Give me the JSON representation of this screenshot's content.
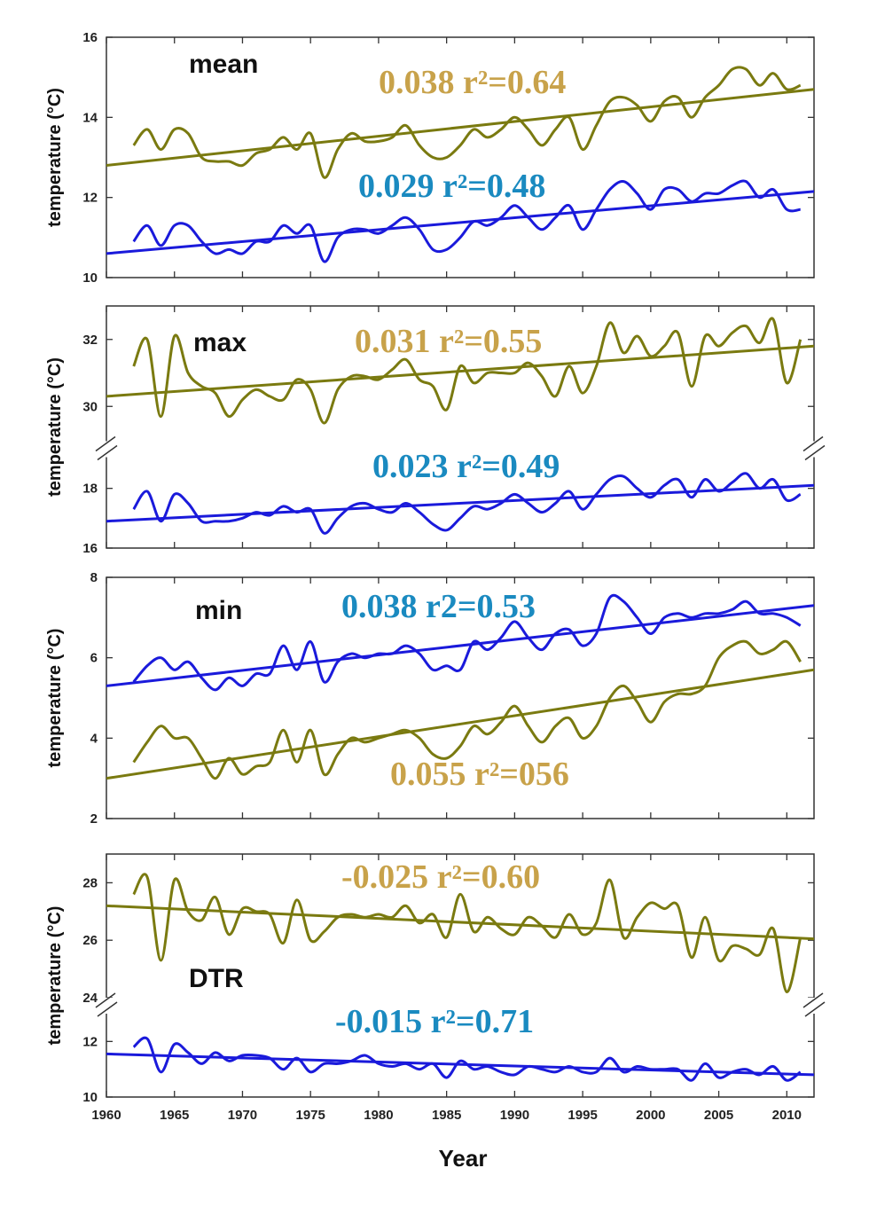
{
  "colors": {
    "olive": "#7a7a10",
    "blue": "#1a1adb",
    "olive_text": "#c8a24a",
    "blue_text": "#1a8ac0"
  },
  "x_axis": {
    "label": "Year",
    "ticks": [
      "1960",
      "1965",
      "1970",
      "1975",
      "1980",
      "1985",
      "1990",
      "1995",
      "2000",
      "2005",
      "2010"
    ]
  },
  "chart_data": [
    {
      "type": "line",
      "panel": "mean",
      "title": "mean",
      "ylabel": "temperature (°C)",
      "xlim": [
        1960,
        2012
      ],
      "ylim": [
        10,
        16
      ],
      "yticks": [
        "10",
        "12",
        "14",
        "16"
      ],
      "x": [
        1962,
        1963,
        1964,
        1965,
        1966,
        1967,
        1968,
        1969,
        1970,
        1971,
        1972,
        1973,
        1974,
        1975,
        1976,
        1977,
        1978,
        1979,
        1980,
        1981,
        1982,
        1983,
        1984,
        1985,
        1986,
        1987,
        1988,
        1989,
        1990,
        1991,
        1992,
        1993,
        1994,
        1995,
        1996,
        1997,
        1998,
        1999,
        2000,
        2001,
        2002,
        2003,
        2004,
        2005,
        2006,
        2007,
        2008,
        2009,
        2010,
        2011
      ],
      "series": [
        {
          "color": "olive",
          "values": [
            13.3,
            13.7,
            13.2,
            13.7,
            13.6,
            13.0,
            12.9,
            12.9,
            12.8,
            13.1,
            13.2,
            13.5,
            13.2,
            13.6,
            12.5,
            13.2,
            13.6,
            13.4,
            13.4,
            13.5,
            13.8,
            13.3,
            13.0,
            13.0,
            13.3,
            13.7,
            13.5,
            13.7,
            14.0,
            13.7,
            13.3,
            13.7,
            14.0,
            13.2,
            13.8,
            14.4,
            14.5,
            14.3,
            13.9,
            14.4,
            14.5,
            14.0,
            14.5,
            14.8,
            15.2,
            15.2,
            14.8,
            15.1,
            14.7,
            14.8
          ],
          "trend": [
            12.8,
            14.7
          ],
          "slope": "0.038",
          "r2": "r²=0.64"
        },
        {
          "color": "blue",
          "values": [
            10.9,
            11.3,
            10.8,
            11.3,
            11.3,
            10.9,
            10.6,
            10.7,
            10.6,
            10.9,
            10.9,
            11.3,
            11.1,
            11.3,
            10.4,
            11.0,
            11.2,
            11.2,
            11.1,
            11.3,
            11.5,
            11.2,
            10.7,
            10.7,
            11.0,
            11.4,
            11.3,
            11.5,
            11.8,
            11.5,
            11.2,
            11.5,
            11.8,
            11.2,
            11.7,
            12.2,
            12.4,
            12.1,
            11.7,
            12.2,
            12.2,
            11.9,
            12.1,
            12.1,
            12.3,
            12.4,
            12.0,
            12.2,
            11.7,
            11.7
          ],
          "trend": [
            10.6,
            12.15
          ],
          "slope": "0.029",
          "r2": "r²=0.48"
        }
      ]
    },
    {
      "type": "line",
      "panel": "max",
      "title": "max",
      "ylabel": "temperature (°C)",
      "xlim": [
        1960,
        2012
      ],
      "broken_axis": true,
      "ylim_upper": [
        29,
        33
      ],
      "yticks_upper": [
        "30",
        "32"
      ],
      "ylim_lower": [
        16,
        19
      ],
      "yticks_lower": [
        "16",
        "18"
      ],
      "x": [
        1962,
        1963,
        1964,
        1965,
        1966,
        1967,
        1968,
        1969,
        1970,
        1971,
        1972,
        1973,
        1974,
        1975,
        1976,
        1977,
        1978,
        1979,
        1980,
        1981,
        1982,
        1983,
        1984,
        1985,
        1986,
        1987,
        1988,
        1989,
        1990,
        1991,
        1992,
        1993,
        1994,
        1995,
        1996,
        1997,
        1998,
        1999,
        2000,
        2001,
        2002,
        2003,
        2004,
        2005,
        2006,
        2007,
        2008,
        2009,
        2010,
        2011
      ],
      "series": [
        {
          "color": "olive",
          "axis": "upper",
          "values": [
            31.2,
            32.0,
            29.7,
            32.1,
            31.0,
            30.6,
            30.4,
            29.7,
            30.2,
            30.5,
            30.3,
            30.2,
            30.8,
            30.5,
            29.5,
            30.5,
            30.9,
            30.9,
            30.8,
            31.1,
            31.4,
            30.8,
            30.6,
            29.9,
            31.2,
            30.7,
            31.0,
            31.0,
            31.0,
            31.3,
            30.9,
            30.3,
            31.2,
            30.4,
            31.2,
            32.5,
            31.6,
            32.1,
            31.5,
            31.8,
            32.2,
            30.6,
            32.1,
            31.8,
            32.2,
            32.4,
            31.9,
            32.6,
            30.7,
            32.0
          ],
          "trend": [
            30.3,
            31.8
          ],
          "slope": "0.031",
          "r2": "r²=0.55"
        },
        {
          "color": "blue",
          "axis": "lower",
          "values": [
            17.3,
            17.9,
            16.9,
            17.8,
            17.5,
            16.9,
            16.9,
            16.9,
            17.0,
            17.2,
            17.1,
            17.4,
            17.2,
            17.3,
            16.5,
            17.0,
            17.4,
            17.5,
            17.3,
            17.2,
            17.5,
            17.2,
            16.8,
            16.6,
            17.0,
            17.4,
            17.3,
            17.5,
            17.8,
            17.5,
            17.2,
            17.5,
            17.9,
            17.3,
            17.8,
            18.3,
            18.4,
            18.0,
            17.7,
            18.1,
            18.3,
            17.7,
            18.3,
            17.9,
            18.2,
            18.5,
            18.0,
            18.3,
            17.6,
            17.8
          ],
          "trend": [
            16.9,
            18.1
          ],
          "slope": "0.023",
          "r2": "r²=0.49"
        }
      ]
    },
    {
      "type": "line",
      "panel": "min",
      "title": "min",
      "ylabel": "temperature (°C)",
      "xlim": [
        1960,
        2012
      ],
      "ylim": [
        2,
        8
      ],
      "yticks": [
        "2",
        "4",
        "6",
        "8"
      ],
      "x": [
        1962,
        1963,
        1964,
        1965,
        1966,
        1967,
        1968,
        1969,
        1970,
        1971,
        1972,
        1973,
        1974,
        1975,
        1976,
        1977,
        1978,
        1979,
        1980,
        1981,
        1982,
        1983,
        1984,
        1985,
        1986,
        1987,
        1988,
        1989,
        1990,
        1991,
        1992,
        1993,
        1994,
        1995,
        1996,
        1997,
        1998,
        1999,
        2000,
        2001,
        2002,
        2003,
        2004,
        2005,
        2006,
        2007,
        2008,
        2009,
        2010,
        2011
      ],
      "series": [
        {
          "color": "blue",
          "values": [
            5.4,
            5.8,
            6.0,
            5.7,
            5.9,
            5.5,
            5.2,
            5.5,
            5.3,
            5.6,
            5.6,
            6.3,
            5.7,
            6.4,
            5.4,
            5.9,
            6.1,
            6.0,
            6.1,
            6.1,
            6.3,
            6.1,
            5.7,
            5.8,
            5.7,
            6.4,
            6.2,
            6.5,
            6.9,
            6.5,
            6.2,
            6.6,
            6.7,
            6.3,
            6.6,
            7.5,
            7.4,
            7.0,
            6.6,
            7.0,
            7.1,
            7.0,
            7.1,
            7.1,
            7.2,
            7.4,
            7.1,
            7.1,
            7.0,
            6.8
          ],
          "trend": [
            5.3,
            7.3
          ],
          "slope": "0.038",
          "r2": "r2=0.53"
        },
        {
          "color": "olive",
          "values": [
            3.4,
            3.9,
            4.3,
            4.0,
            4.0,
            3.5,
            3.0,
            3.5,
            3.1,
            3.3,
            3.4,
            4.2,
            3.4,
            4.2,
            3.1,
            3.6,
            4.0,
            3.9,
            4.0,
            4.1,
            4.2,
            4.0,
            3.6,
            3.5,
            3.8,
            4.3,
            4.1,
            4.4,
            4.8,
            4.3,
            3.9,
            4.3,
            4.5,
            4.0,
            4.3,
            5.0,
            5.3,
            4.9,
            4.4,
            4.9,
            5.1,
            5.1,
            5.3,
            6.0,
            6.3,
            6.4,
            6.1,
            6.2,
            6.4,
            5.9
          ],
          "trend": [
            3.0,
            5.7
          ],
          "slope": "0.055",
          "r2": "r²=056"
        }
      ]
    },
    {
      "type": "line",
      "panel": "DTR",
      "title": "DTR",
      "ylabel": "temperature (°C)",
      "xlim": [
        1960,
        2012
      ],
      "broken_axis": true,
      "ylim_upper": [
        24,
        29
      ],
      "yticks_upper": [
        "24",
        "26",
        "28"
      ],
      "ylim_lower": [
        10,
        13
      ],
      "yticks_lower": [
        "10",
        "12"
      ],
      "x": [
        1962,
        1963,
        1964,
        1965,
        1966,
        1967,
        1968,
        1969,
        1970,
        1971,
        1972,
        1973,
        1974,
        1975,
        1976,
        1977,
        1978,
        1979,
        1980,
        1981,
        1982,
        1983,
        1984,
        1985,
        1986,
        1987,
        1988,
        1989,
        1990,
        1991,
        1992,
        1993,
        1994,
        1995,
        1996,
        1997,
        1998,
        1999,
        2000,
        2001,
        2002,
        2003,
        2004,
        2005,
        2006,
        2007,
        2008,
        2009,
        2010,
        2011
      ],
      "series": [
        {
          "color": "olive",
          "axis": "upper",
          "values": [
            27.6,
            28.2,
            25.3,
            28.1,
            27.0,
            26.7,
            27.5,
            26.2,
            27.1,
            27.0,
            26.9,
            25.9,
            27.4,
            26.0,
            26.3,
            26.8,
            26.9,
            26.8,
            26.9,
            26.8,
            27.2,
            26.6,
            26.9,
            26.1,
            27.6,
            26.3,
            26.8,
            26.4,
            26.2,
            26.8,
            26.5,
            26.1,
            26.9,
            26.2,
            26.6,
            28.1,
            26.1,
            26.8,
            27.3,
            27.1,
            27.2,
            25.4,
            26.8,
            25.3,
            25.8,
            25.7,
            25.5,
            26.4,
            24.2,
            26.1
          ],
          "trend": [
            27.2,
            26.05
          ],
          "slope": "-0.025",
          "r2": "r²=0.60"
        },
        {
          "color": "blue",
          "axis": "lower",
          "values": [
            11.8,
            12.1,
            10.9,
            11.9,
            11.6,
            11.2,
            11.6,
            11.3,
            11.5,
            11.5,
            11.4,
            11.0,
            11.4,
            10.9,
            11.2,
            11.2,
            11.3,
            11.5,
            11.2,
            11.1,
            11.2,
            11.0,
            11.2,
            10.7,
            11.3,
            11.0,
            11.1,
            10.9,
            10.8,
            11.1,
            11.0,
            10.9,
            11.1,
            10.9,
            10.9,
            11.4,
            10.9,
            11.1,
            11.0,
            11.0,
            11.0,
            10.6,
            11.2,
            10.7,
            10.9,
            11.0,
            10.8,
            11.1,
            10.6,
            10.9
          ],
          "trend": [
            11.55,
            10.8
          ],
          "slope": "-0.015",
          "r2": "r²=0.71"
        }
      ]
    }
  ]
}
